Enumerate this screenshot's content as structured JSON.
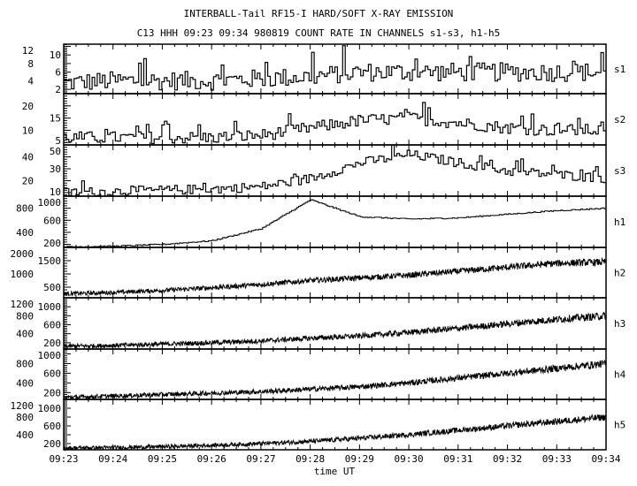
{
  "chart_data": {
    "type": "line",
    "title": "INTERBALL-Tail RF15-I HARD/SOFT X-RAY EMISSION",
    "subtitle": "C13 HHH 09:23 09:34 980819  COUNT RATE IN CHANNELS s1-s3, h1-h5",
    "xlabel": "time UT",
    "x_ticks": [
      "09:23",
      "09:24",
      "09:25",
      "09:26",
      "09:27",
      "09:28",
      "09:29",
      "09:30",
      "09:31",
      "09:32",
      "09:33",
      "09:34"
    ],
    "x_minutes": [
      0,
      1,
      2,
      3,
      4,
      5,
      6,
      7,
      8,
      9,
      10,
      11
    ],
    "grid": false,
    "series": [
      {
        "name": "s1",
        "ylim": [
          1,
          12.5
        ],
        "yticks": [
          "2",
          "4",
          "6",
          "8",
          "10",
          "12"
        ],
        "ytick_values": [
          2,
          4,
          6,
          8,
          10,
          12
        ],
        "trend": [
          3.5,
          4,
          4,
          4,
          4.5,
          5,
          6,
          6,
          6,
          6,
          6,
          6
        ],
        "noise": 2.2,
        "style": "histogram"
      },
      {
        "name": "s2",
        "ylim": [
          4,
          25
        ],
        "yticks": [
          "5",
          "10",
          "15",
          "20"
        ],
        "ytick_values": [
          5,
          10,
          15,
          20
        ],
        "trend": [
          7,
          7,
          7,
          7,
          8,
          11,
          14,
          15,
          13,
          11,
          10,
          10
        ],
        "noise": 2.5,
        "style": "histogram"
      },
      {
        "name": "s3",
        "ylim": [
          7,
          50
        ],
        "yticks": [
          "10",
          "20",
          "30",
          "40",
          "50"
        ],
        "ytick_values": [
          10,
          20,
          30,
          40,
          50
        ],
        "trend": [
          10,
          11,
          12,
          13,
          15,
          22,
          35,
          42,
          35,
          28,
          25,
          22
        ],
        "noise": 4,
        "style": "histogram"
      },
      {
        "name": "h1",
        "ylim": [
          150,
          1000
        ],
        "yticks": [
          "200",
          "400",
          "600",
          "800",
          "1000"
        ],
        "ytick_values": [
          200,
          400,
          600,
          800,
          1000
        ],
        "trend": [
          160,
          170,
          200,
          260,
          460,
          940,
          660,
          620,
          640,
          700,
          760,
          800
        ],
        "noise": 10,
        "style": "smooth"
      },
      {
        "name": "h2",
        "ylim": [
          100,
          2000
        ],
        "yticks": [
          "500",
          "1000",
          "1500",
          "2000"
        ],
        "ytick_values": [
          500,
          1000,
          1500,
          2000
        ],
        "trend": [
          250,
          300,
          380,
          480,
          600,
          750,
          850,
          950,
          1100,
          1250,
          1400,
          1450
        ],
        "noise": 110,
        "style": "dense"
      },
      {
        "name": "h3",
        "ylim": [
          60,
          1200
        ],
        "yticks": [
          "200",
          "400",
          "600",
          "800",
          "1000",
          "1200"
        ],
        "ytick_values": [
          200,
          400,
          600,
          800,
          1000,
          1200
        ],
        "trend": [
          120,
          140,
          170,
          200,
          240,
          300,
          350,
          430,
          520,
          620,
          720,
          800
        ],
        "noise": 70,
        "style": "dense"
      },
      {
        "name": "h4",
        "ylim": [
          60,
          1100
        ],
        "yticks": [
          "200",
          "400",
          "600",
          "800",
          "1000"
        ],
        "ytick_values": [
          200,
          400,
          600,
          800,
          1000
        ],
        "trend": [
          100,
          130,
          160,
          190,
          220,
          270,
          320,
          400,
          500,
          600,
          700,
          800
        ],
        "noise": 65,
        "style": "dense"
      },
      {
        "name": "h5",
        "ylim": [
          60,
          1200
        ],
        "yticks": [
          "200",
          "400",
          "600",
          "800",
          "1000",
          "1200"
        ],
        "ytick_values": [
          200,
          400,
          600,
          800,
          1000,
          1200
        ],
        "trend": [
          100,
          110,
          130,
          160,
          200,
          250,
          320,
          400,
          500,
          600,
          700,
          800
        ],
        "noise": 65,
        "style": "dense"
      }
    ]
  }
}
